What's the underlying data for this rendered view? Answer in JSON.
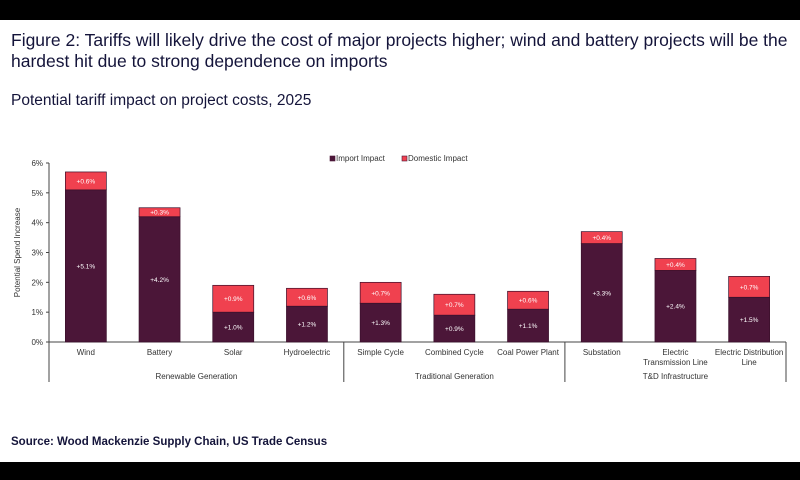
{
  "title": "Figure 2: Tariffs will likely drive the cost of major projects higher; wind and battery projects will be the hardest hit due to strong dependence on imports",
  "subtitle": "Potential tariff impact on project costs, 2025",
  "source": "Source: Wood Mackenzie Supply Chain, US Trade Census",
  "chart_data": {
    "type": "bar",
    "stacked": true,
    "ylabel": "Potential Spend Increase",
    "ylim": [
      0,
      6
    ],
    "yticks": [
      "0%",
      "1%",
      "2%",
      "3%",
      "4%",
      "5%",
      "6%"
    ],
    "legend": [
      "Import Impact",
      "Domestic Impact"
    ],
    "legend_position": "top-center",
    "categories": [
      "Wind",
      "Battery",
      "Solar",
      "Hydroelectric",
      "Simple Cycle",
      "Combined Cycle",
      "Coal Power Plant",
      "Substation",
      "Electric Transmission Line",
      "Electric Distribution Line"
    ],
    "category_lines": [
      [
        "Wind"
      ],
      [
        "Battery"
      ],
      [
        "Solar"
      ],
      [
        "Hydroelectric"
      ],
      [
        "Simple Cycle"
      ],
      [
        "Combined Cycle"
      ],
      [
        "Coal Power Plant"
      ],
      [
        "Substation"
      ],
      [
        "Electric",
        "Transmission Line"
      ],
      [
        "Electric Distribution",
        "Line"
      ]
    ],
    "groups": [
      {
        "name": "Renewable Generation",
        "count": 4
      },
      {
        "name": "Traditional Generation",
        "count": 3
      },
      {
        "name": "T&D Infrastructure",
        "count": 3
      }
    ],
    "series": [
      {
        "name": "Import Impact",
        "color": "#4b1638",
        "values": [
          5.1,
          4.2,
          1.0,
          1.2,
          1.3,
          0.9,
          1.1,
          3.3,
          2.4,
          1.5
        ],
        "labels": [
          "+5.1%",
          "+4.2%",
          "+1.0%",
          "+1.2%",
          "+1.3%",
          "+0.9%",
          "+1.1%",
          "+3.3%",
          "+2.4%",
          "+1.5%"
        ]
      },
      {
        "name": "Domestic Impact",
        "color": "#f0414f",
        "values": [
          0.6,
          0.3,
          0.9,
          0.6,
          0.7,
          0.7,
          0.6,
          0.4,
          0.4,
          0.7
        ],
        "labels": [
          "+0.6%",
          "+0.3%",
          "+0.9%",
          "+0.6%",
          "+0.7%",
          "+0.7%",
          "+0.6%",
          "+0.4%",
          "+0.4%",
          "+0.7%"
        ]
      }
    ]
  }
}
